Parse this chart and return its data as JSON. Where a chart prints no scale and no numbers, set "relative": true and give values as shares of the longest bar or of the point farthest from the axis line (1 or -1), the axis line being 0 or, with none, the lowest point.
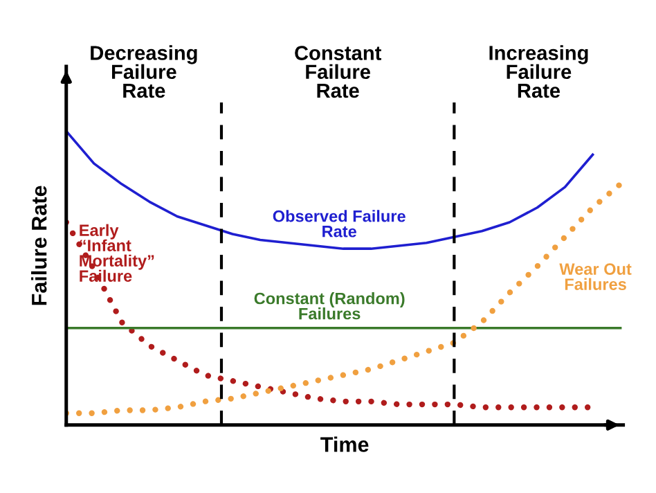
{
  "chart_data": {
    "type": "line",
    "relative": true,
    "xlabel": "Time",
    "ylabel": "Failure Rate",
    "categories": [
      null,
      null,
      null,
      null,
      null,
      null,
      null,
      null,
      null,
      null,
      null,
      null,
      null,
      null,
      null,
      null,
      null,
      null,
      null,
      null,
      null
    ],
    "series": [
      {
        "name": "Observed Failure\nRate",
        "color": "#1f1fd0",
        "line_style": "solid",
        "values": [
          1.0,
          0.89,
          0.82,
          0.76,
          0.71,
          0.68,
          0.65,
          0.63,
          0.62,
          0.61,
          0.6,
          0.6,
          0.61,
          0.62,
          0.64,
          0.66,
          0.69,
          0.74,
          0.81,
          0.92,
          null
        ]
      },
      {
        "name": "Early\n“Infant\nMortality”\nFailure",
        "color": "#b01c1c",
        "line_style": "dotted",
        "values": [
          0.69,
          0.53,
          0.35,
          0.27,
          0.22,
          0.17,
          0.15,
          0.13,
          0.11,
          0.09,
          0.08,
          0.08,
          0.07,
          0.07,
          0.07,
          0.06,
          0.06,
          0.06,
          0.06,
          0.06,
          null
        ]
      },
      {
        "name": "Constant (Random)\nFailures",
        "color": "#3a7a2a",
        "line_style": "solid",
        "values": [
          0.33,
          0.33,
          0.33,
          0.33,
          0.33,
          0.33,
          0.33,
          0.33,
          0.33,
          0.33,
          0.33,
          0.33,
          0.33,
          0.33,
          0.33,
          0.33,
          0.33,
          0.33,
          0.33,
          0.33,
          0.33
        ]
      },
      {
        "name": "Wear Out\nFailures",
        "color": "#f0a040",
        "line_style": "dotted",
        "values": [
          0.04,
          0.04,
          0.05,
          0.05,
          0.06,
          0.08,
          0.09,
          0.11,
          0.13,
          0.15,
          0.17,
          0.19,
          0.22,
          0.25,
          0.28,
          0.35,
          0.45,
          0.54,
          0.64,
          0.74,
          0.82
        ]
      }
    ],
    "annotations": [
      "Decreasing\nFailure\nRate",
      "Constant\nFailure\nRate",
      "Increasing\nFailure\nRate"
    ],
    "legend": false
  }
}
